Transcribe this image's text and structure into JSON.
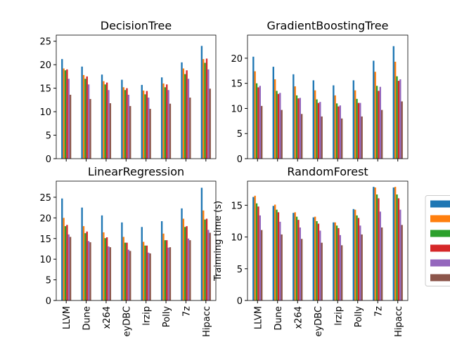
{
  "chart_data": [
    {
      "type": "bar",
      "title": "DecisionTree",
      "ylim": [
        0,
        26.3
      ],
      "yticks": [
        0,
        5,
        10,
        15,
        20,
        25
      ],
      "series": [
        {
          "color": "#1f77b4",
          "values": [
            21.2,
            19.6,
            17.9,
            16.8,
            15.7,
            17.3,
            20.5,
            24.0
          ]
        },
        {
          "color": "#ff7f0e",
          "values": [
            19.2,
            17.8,
            16.5,
            15.2,
            14.5,
            16.0,
            19.2,
            21.2
          ]
        },
        {
          "color": "#2ca02c",
          "values": [
            18.8,
            17.0,
            15.8,
            14.6,
            13.7,
            15.2,
            18.0,
            20.4
          ]
        },
        {
          "color": "#d62728",
          "values": [
            19.0,
            17.5,
            16.2,
            15.0,
            14.4,
            15.8,
            18.8,
            21.3
          ]
        },
        {
          "color": "#9467bd",
          "values": [
            17.0,
            15.8,
            14.6,
            13.6,
            13.0,
            14.6,
            17.0,
            19.0
          ]
        },
        {
          "color": "#8c564b",
          "values": [
            13.6,
            12.7,
            11.8,
            11.2,
            10.6,
            11.7,
            13.0,
            14.9
          ]
        }
      ]
    },
    {
      "type": "bar",
      "title": "GradientBoostingTree",
      "ylim": [
        0,
        24.6
      ],
      "yticks": [
        0,
        5,
        10,
        15,
        20
      ],
      "series": [
        {
          "color": "#1f77b4",
          "values": [
            20.3,
            18.3,
            16.8,
            15.6,
            14.6,
            15.6,
            19.5,
            22.4
          ]
        },
        {
          "color": "#ff7f0e",
          "values": [
            17.4,
            15.8,
            14.4,
            13.6,
            12.6,
            13.6,
            17.3,
            19.3
          ]
        },
        {
          "color": "#2ca02c",
          "values": [
            15.0,
            13.5,
            12.6,
            11.8,
            11.0,
            11.9,
            14.5,
            16.4
          ]
        },
        {
          "color": "#d62728",
          "values": [
            14.2,
            12.9,
            12.0,
            11.1,
            10.4,
            11.1,
            13.5,
            15.5
          ]
        },
        {
          "color": "#9467bd",
          "values": [
            14.5,
            13.1,
            12.1,
            11.3,
            10.6,
            11.1,
            14.3,
            15.8
          ]
        },
        {
          "color": "#8c564b",
          "values": [
            10.5,
            9.7,
            8.9,
            8.4,
            8.0,
            8.4,
            9.7,
            11.4
          ]
        }
      ]
    },
    {
      "type": "bar",
      "title": "LinearRegression",
      "ylim": [
        0,
        28.9
      ],
      "yticks": [
        0,
        5,
        10,
        15,
        20,
        25
      ],
      "categories": [
        "LLVM",
        "Dune",
        "x264",
        "eyDBC",
        "lrzip",
        "Polly",
        "7z",
        "Hipacc"
      ],
      "series": [
        {
          "color": "#1f77b4",
          "values": [
            24.7,
            22.5,
            20.6,
            18.9,
            17.8,
            19.2,
            22.3,
            27.3
          ]
        },
        {
          "color": "#ff7f0e",
          "values": [
            20.0,
            18.0,
            16.5,
            15.4,
            14.2,
            16.2,
            19.8,
            21.8
          ]
        },
        {
          "color": "#2ca02c",
          "values": [
            18.0,
            16.3,
            15.1,
            14.0,
            13.3,
            14.6,
            17.8,
            19.6
          ]
        },
        {
          "color": "#d62728",
          "values": [
            18.3,
            16.7,
            15.3,
            14.0,
            13.3,
            14.6,
            18.0,
            19.8
          ]
        },
        {
          "color": "#9467bd",
          "values": [
            16.0,
            14.4,
            13.1,
            12.3,
            11.6,
            12.8,
            15.0,
            17.1
          ]
        },
        {
          "color": "#8c564b",
          "values": [
            15.4,
            14.1,
            12.9,
            12.0,
            11.4,
            12.9,
            14.6,
            16.4
          ]
        }
      ]
    },
    {
      "type": "bar",
      "title": "RandomForest",
      "ylabel": "Trainning time (s)",
      "ylim": [
        0,
        18.8
      ],
      "yticks": [
        0,
        5,
        10,
        15
      ],
      "categories": [
        "LLVM",
        "Dune",
        "x264",
        "eyDBC",
        "lrzip",
        "Polly",
        "7z",
        "Hipacc"
      ],
      "legend": "center right",
      "series": [
        {
          "color": "#1f77b4",
          "values": [
            16.3,
            14.9,
            13.8,
            13.1,
            12.3,
            14.4,
            17.9,
            17.8
          ]
        },
        {
          "color": "#ff7f0e",
          "values": [
            16.5,
            15.1,
            13.9,
            13.2,
            12.3,
            14.3,
            17.8,
            17.9
          ]
        },
        {
          "color": "#2ca02c",
          "values": [
            15.3,
            14.3,
            13.2,
            12.5,
            11.8,
            13.4,
            16.7,
            16.7
          ]
        },
        {
          "color": "#d62728",
          "values": [
            14.8,
            13.9,
            12.7,
            12.1,
            11.4,
            13.0,
            16.1,
            16.1
          ]
        },
        {
          "color": "#9467bd",
          "values": [
            13.4,
            12.4,
            11.5,
            11.0,
            10.3,
            11.8,
            14.0,
            14.3
          ]
        },
        {
          "color": "#8c564b",
          "values": [
            11.1,
            10.4,
            9.7,
            9.1,
            8.7,
            10.4,
            11.5,
            11.9
          ]
        }
      ]
    }
  ]
}
